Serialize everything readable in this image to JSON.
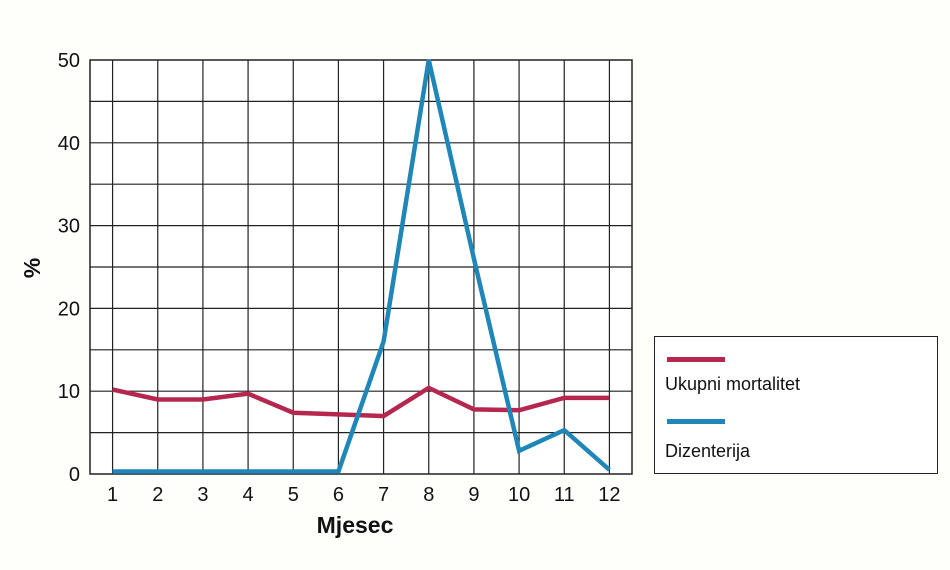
{
  "chart_data": {
    "type": "line",
    "x": [
      1,
      2,
      3,
      4,
      5,
      6,
      7,
      8,
      9,
      10,
      11,
      12
    ],
    "xlabel": "Mjesec",
    "ylabel": "%",
    "ylim": [
      0,
      50
    ],
    "yticks": [
      0,
      10,
      20,
      30,
      40,
      50
    ],
    "grid": true,
    "legend_position": "right",
    "series": [
      {
        "name": "Ukupni mortalitet",
        "color": "#b5274f",
        "values": [
          10.2,
          9.0,
          9.0,
          9.7,
          7.4,
          7.2,
          7.0,
          10.4,
          7.8,
          7.7,
          9.2,
          9.2
        ]
      },
      {
        "name": "Dizenterija",
        "color": "#1f86b8",
        "values": [
          0.3,
          0.3,
          0.3,
          0.3,
          0.3,
          0.3,
          16.0,
          50.0,
          26.0,
          2.8,
          5.3,
          0.5
        ]
      }
    ]
  }
}
